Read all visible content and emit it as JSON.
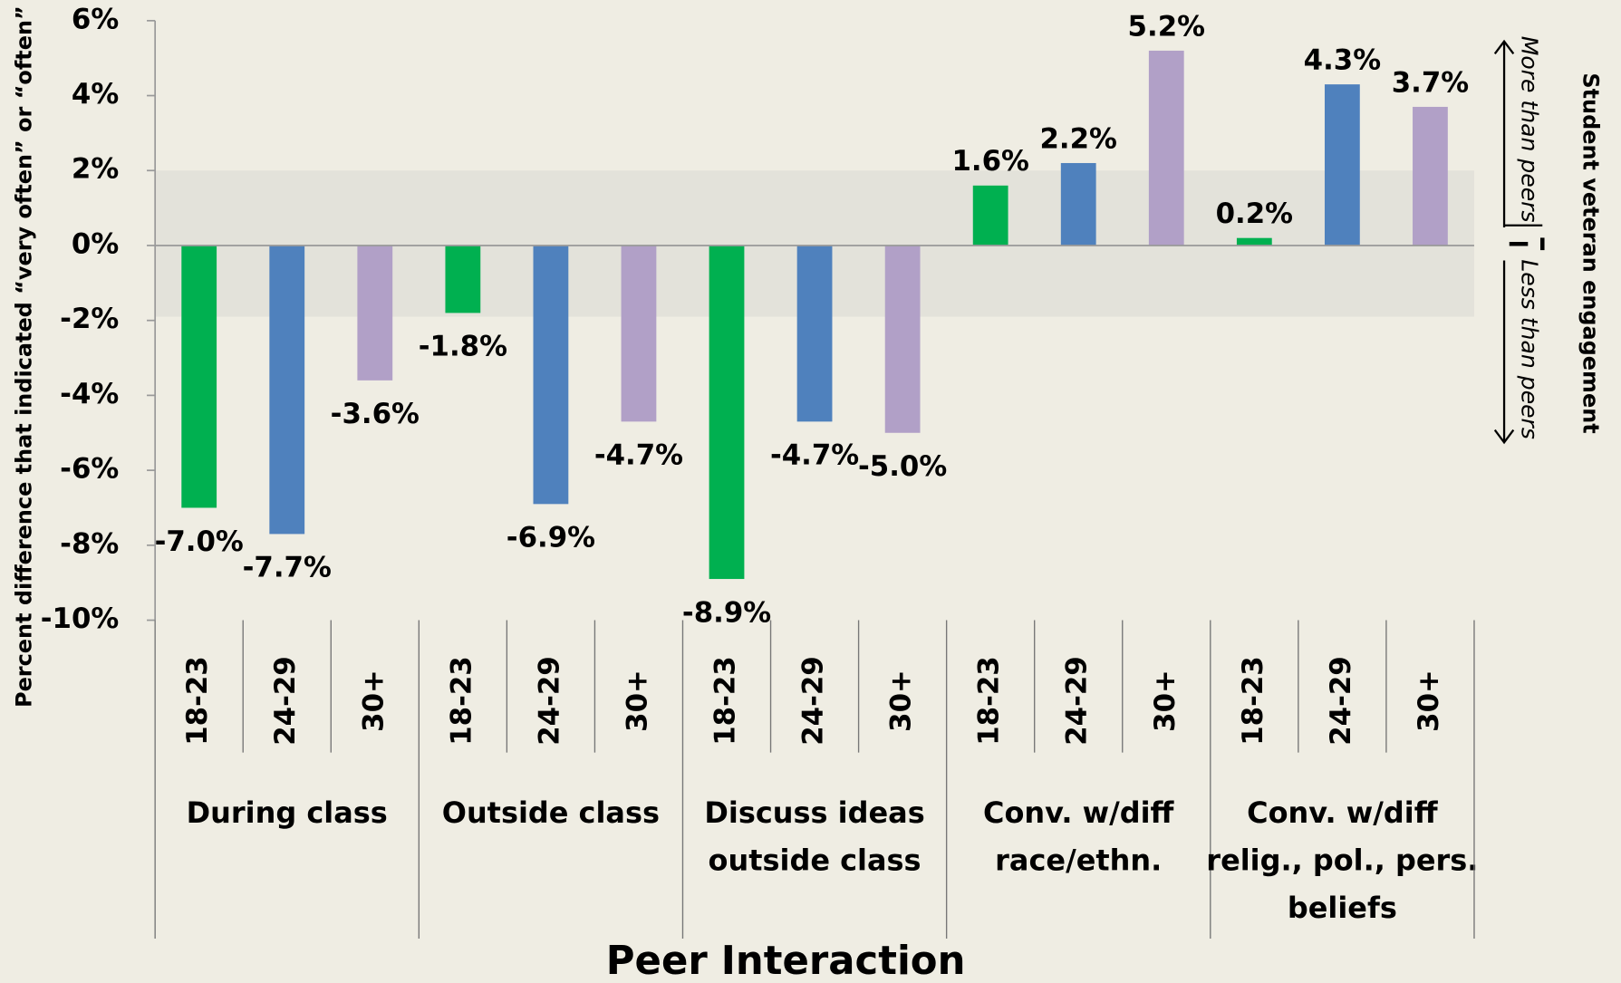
{
  "chart_data": {
    "type": "bar",
    "x_label": "Peer Interaction",
    "y_label": "Percent difference that indicated “very often” or “often”",
    "annotations": {
      "above": "More than peers",
      "below": "Less than peers",
      "side": "Student veteran engagement"
    },
    "category_colors": [
      "#00b050",
      "#4f81bd",
      "#b1a0c7"
    ],
    "shaded_range": [
      -1.9,
      2
    ],
    "ylim": [
      -10,
      6
    ],
    "yticks": [
      {
        "value": -10,
        "label": "-10%"
      },
      {
        "value": -8,
        "label": "-8%"
      },
      {
        "value": -6,
        "label": "-6%"
      },
      {
        "value": -4,
        "label": "-4%"
      },
      {
        "value": -2,
        "label": "-2%"
      },
      {
        "value": 0,
        "label": "0%"
      },
      {
        "value": 2,
        "label": "2%"
      },
      {
        "value": 4,
        "label": "4%"
      },
      {
        "value": 6,
        "label": "6%"
      }
    ],
    "groups": [
      {
        "name": [
          "During class"
        ],
        "categories": [
          "18-23",
          "24-29",
          "30+"
        ],
        "values": [
          -7.0,
          -7.7,
          -3.6
        ],
        "value_labels": [
          "-7.0%",
          "-7.7%",
          "-3.6%"
        ]
      },
      {
        "name": [
          "Outside class"
        ],
        "categories": [
          "18-23",
          "24-29",
          "30+"
        ],
        "values": [
          -1.8,
          -6.9,
          -4.7
        ],
        "value_labels": [
          "-1.8%",
          "-6.9%",
          "-4.7%"
        ]
      },
      {
        "name": [
          "Discuss ideas",
          "outside class"
        ],
        "categories": [
          "18-23",
          "24-29",
          "30+"
        ],
        "values": [
          -8.9,
          -4.7,
          -5.0
        ],
        "value_labels": [
          "-8.9%",
          "-4.7%",
          "-5.0%"
        ]
      },
      {
        "name": [
          "Conv. w/diff",
          "race/ethn."
        ],
        "categories": [
          "18-23",
          "24-29",
          "30+"
        ],
        "values": [
          1.6,
          2.2,
          5.2
        ],
        "value_labels": [
          "1.6%",
          "2.2%",
          "5.2%"
        ]
      },
      {
        "name": [
          "Conv. w/diff",
          "relig., pol., pers.",
          "beliefs"
        ],
        "categories": [
          "18-23",
          "24-29",
          "30+"
        ],
        "values": [
          0.2,
          4.3,
          3.7
        ],
        "value_labels": [
          "0.2%",
          "4.3%",
          "3.7%"
        ]
      }
    ]
  }
}
